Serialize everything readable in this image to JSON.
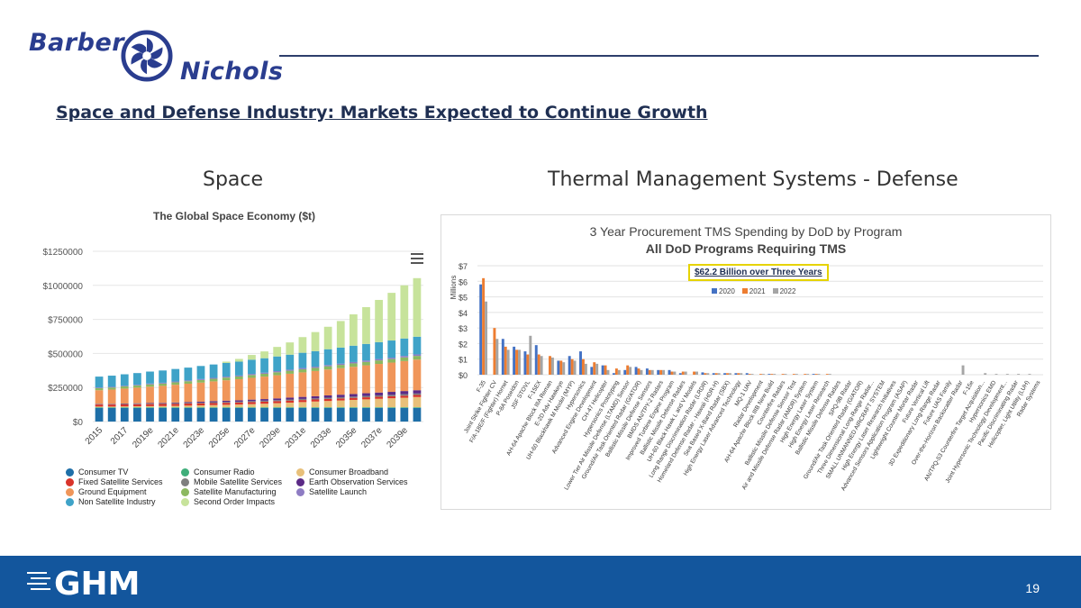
{
  "header": {
    "logo_line1": "Barber",
    "logo_line2": "Nichols",
    "title": "Space and Defense Industry: Markets Expected to Continue Growth"
  },
  "sections": {
    "space": "Space",
    "tms": "Thermal Management Systems - Defense"
  },
  "colors": {
    "brand_blue": "#2a3d8f",
    "footer_blue": "#13569d",
    "callout_border": "#e6d300",
    "tms_2020": "#4472c4",
    "tms_2021": "#ed7d31",
    "tms_2022": "#a5a5a5"
  },
  "icons": {
    "menu": "hamburger-menu-icon",
    "logo_mark": "turbine-icon"
  },
  "space_legend": [
    {
      "label": "Consumer TV",
      "color": "#1e6fa8"
    },
    {
      "label": "Consumer Radio",
      "color": "#3fae7a"
    },
    {
      "label": "Consumer Broadband",
      "color": "#e8c07a"
    },
    {
      "label": "Fixed Satellite Services",
      "color": "#d9342b"
    },
    {
      "label": "Mobile Satellite Services",
      "color": "#7f7f7f"
    },
    {
      "label": "Earth Observation Services",
      "color": "#5b2a86"
    },
    {
      "label": "Ground Equipment",
      "color": "#f0965a"
    },
    {
      "label": "Satellite Manufacturing",
      "color": "#8cb860"
    },
    {
      "label": "Satellite Launch",
      "color": "#8e7cc3"
    },
    {
      "label": "Non Satellite Industry",
      "color": "#3fa3c8"
    },
    {
      "label": "Second Order Impacts",
      "color": "#c7e39b"
    }
  ],
  "chart_data": [
    {
      "type": "bar",
      "stacked": true,
      "title": "The Global Space Economy ($t)",
      "categories": [
        "2015",
        "2016",
        "2017",
        "2018",
        "2019e",
        "2020e",
        "2021e",
        "2022e",
        "2023e",
        "2024e",
        "2025e",
        "2026e",
        "2027e",
        "2028e",
        "2029e",
        "2030e",
        "2031e",
        "2032e",
        "2033e",
        "2034e",
        "2035e",
        "2036e",
        "2037e",
        "2038e",
        "2039e",
        "2040e"
      ],
      "x_tick_labels": [
        "2015",
        "2017",
        "2019e",
        "2021e",
        "2023e",
        "2025e",
        "2027e",
        "2029e",
        "2031e",
        "2033e",
        "2035e",
        "2037e",
        "2039e"
      ],
      "y_tick_labels": [
        "$0",
        "$250000",
        "$500000",
        "$750000",
        "$1000000",
        "$1250000"
      ],
      "ylim": [
        0,
        1250000
      ],
      "series": [
        {
          "name": "Consumer TV",
          "values": [
            100000,
            100000,
            100000,
            100000,
            100000,
            100000,
            100000,
            100000,
            100000,
            100000,
            100000,
            100000,
            100000,
            100000,
            100000,
            100000,
            100000,
            100000,
            100000,
            100000,
            100000,
            100000,
            100000,
            100000,
            100000,
            100000
          ]
        },
        {
          "name": "Consumer Radio",
          "values": [
            5000,
            5000,
            5000,
            5000,
            5000,
            5000,
            5000,
            5000,
            5000,
            5000,
            5000,
            5000,
            5000,
            5000,
            5000,
            5000,
            5000,
            5000,
            5000,
            5000,
            5000,
            5000,
            5000,
            5000,
            5000,
            5000
          ]
        },
        {
          "name": "Consumer Broadband",
          "values": [
            5000,
            5000,
            6000,
            7000,
            8000,
            9000,
            10000,
            12000,
            14000,
            16000,
            18000,
            20000,
            23000,
            26000,
            30000,
            34000,
            38000,
            42000,
            46000,
            50000,
            54000,
            58000,
            62000,
            66000,
            70000,
            75000
          ]
        },
        {
          "name": "Fixed Satellite Services",
          "values": [
            15000,
            15000,
            15000,
            15000,
            15000,
            15000,
            15000,
            15000,
            15000,
            15000,
            15000,
            15000,
            15000,
            15000,
            15000,
            15000,
            15000,
            15000,
            15000,
            15000,
            15000,
            15000,
            15000,
            15000,
            15000,
            15000
          ]
        },
        {
          "name": "Mobile Satellite Services",
          "values": [
            3000,
            3000,
            3000,
            4000,
            4000,
            4000,
            5000,
            5000,
            5000,
            6000,
            6000,
            6000,
            7000,
            7000,
            7000,
            8000,
            8000,
            8000,
            9000,
            9000,
            9000,
            10000,
            10000,
            10000,
            11000,
            11000
          ]
        },
        {
          "name": "Earth Observation Services",
          "values": [
            2000,
            2000,
            3000,
            3000,
            4000,
            4000,
            5000,
            6000,
            7000,
            8000,
            9000,
            10000,
            11000,
            12000,
            13000,
            14000,
            15000,
            16000,
            17000,
            18000,
            19000,
            20000,
            21000,
            22000,
            23000,
            24000
          ]
        },
        {
          "name": "Ground Equipment",
          "values": [
            100000,
            105000,
            110000,
            115000,
            120000,
            125000,
            130000,
            135000,
            140000,
            145000,
            150000,
            155000,
            160000,
            165000,
            170000,
            175000,
            180000,
            185000,
            190000,
            195000,
            200000,
            205000,
            210000,
            215000,
            220000,
            225000
          ]
        },
        {
          "name": "Satellite Manufacturing",
          "values": [
            15000,
            15000,
            16000,
            16000,
            17000,
            17000,
            18000,
            18000,
            19000,
            19000,
            20000,
            20000,
            21000,
            21000,
            22000,
            22000,
            23000,
            23000,
            24000,
            24000,
            25000,
            25000,
            26000,
            26000,
            27000,
            27000
          ]
        },
        {
          "name": "Satellite Launch",
          "values": [
            5000,
            5000,
            5000,
            5000,
            6000,
            6000,
            6000,
            6000,
            7000,
            7000,
            7000,
            7000,
            8000,
            8000,
            8000,
            8000,
            9000,
            9000,
            9000,
            9000,
            10000,
            10000,
            10000,
            10000,
            11000,
            11000
          ]
        },
        {
          "name": "Non Satellite Industry",
          "values": [
            80000,
            82000,
            84000,
            86000,
            88000,
            90000,
            92000,
            94000,
            96000,
            98000,
            100000,
            102000,
            104000,
            106000,
            108000,
            110000,
            112000,
            114000,
            116000,
            118000,
            120000,
            122000,
            124000,
            126000,
            128000,
            130000
          ]
        },
        {
          "name": "Second Order Impacts",
          "values": [
            0,
            0,
            0,
            0,
            0,
            0,
            0,
            0,
            0,
            0,
            10000,
            20000,
            35000,
            50000,
            70000,
            90000,
            115000,
            140000,
            165000,
            195000,
            230000,
            270000,
            310000,
            350000,
            390000,
            430000
          ]
        }
      ]
    },
    {
      "type": "bar",
      "title": "3 Year Procurement TMS Spending by DoD by Program",
      "subtitle": "All DoD Programs Requiring TMS",
      "annotation": "$62.2 Billion over Three Years",
      "ylabel": "Millions",
      "ylim": [
        0,
        7
      ],
      "y_tick_labels": [
        "$0",
        "$1",
        "$2",
        "$3",
        "$4",
        "$5",
        "$6",
        "$7"
      ],
      "categories": [
        "F-35",
        "Joint Strike Fighter CV",
        "F/A-18E/F (Fighter) Hornet",
        "P-8A Poseidon",
        "JSF STOVL",
        "F-15EX",
        "AH-64 Apache Block IIIA Reman",
        "E-2D Adv Hawkeye",
        "UH-60 Blackhawk M Model (MYP)",
        "Hypersonics",
        "Advanced Engine Development",
        "CH-47 Helicopter",
        "Hypersonics Prototyping",
        "Lower Tier Air Missile Defense (LTAMD) Sensor",
        "Ground/Air Task Oriented Radar (G/ATOR)",
        "Ballistic Missile Defense Sensors",
        "BMDS AN/TPY-2 Radars",
        "Improved Turbine Engine Program",
        "Ballistic Missile Defense Radars",
        "UH-60 Black Hawk L and V Models",
        "Long Range Discrimination Radar (LRDR)",
        "Homeland Defense Radar - Hawaii (HDR-H)",
        "Sea Based X-Band Radar (SBX)",
        "High Energy Laser Advanced Technology",
        "MQ-1 UAV",
        "Radar Development",
        "AH-64 Apache Block IIIB New Build",
        "Counterfire Radars",
        "Ballistic Missile Defense Sensor Test",
        "Air and Missile Defense Radar (AMDR) System",
        "High Energy Laser System",
        "High Energy Laser Research",
        "Ballistic Missile Defense Radars",
        "SPQ-9B Radar",
        "Ground/Air Task Oriented Radar (G/ATOR)",
        "Three Dimensional Long-Range Radar...",
        "SMALL UNMANNED AIRCRAFT SYSTEM",
        "High Energy Laser Research Initiatives",
        "Advanced Sensors Application Program (ASAP)",
        "Lightweight Counter Mortar Radar",
        "Future Vertical Lift",
        "3D Expeditionary Long-Range Radar",
        "Future UAS Family",
        "Over-the-Horizon Backscatter Radar",
        "F-15e",
        "AN/TPQ-53 Counterfire Target Acquisition...",
        "Hypersonics EMD",
        "Joint Hypersonic Technology Development...",
        "Pacific Discriminating Radar",
        "Helicopter, Light Utility (LUH)",
        "Radar Systems"
      ],
      "series": [
        {
          "name": "2020",
          "values": [
            5.8,
            0,
            2.3,
            1.8,
            1.5,
            1.9,
            0,
            0.9,
            1.2,
            1.5,
            0.5,
            0.6,
            0.1,
            0.3,
            0.5,
            0.4,
            0.3,
            0.3,
            0.1,
            0,
            0.15,
            0.1,
            0.1,
            0.1,
            0.1,
            0,
            0.05,
            0,
            0,
            0,
            0.05,
            0,
            0,
            0,
            0,
            0,
            0,
            0,
            0,
            0,
            0,
            0,
            0,
            0,
            0,
            0,
            0,
            0,
            0,
            0,
            0
          ]
        },
        {
          "name": "2021",
          "values": [
            6.2,
            3.0,
            1.8,
            1.6,
            1.3,
            1.3,
            1.2,
            0.9,
            1.0,
            1.0,
            0.8,
            0.6,
            0.4,
            0.6,
            0.4,
            0.3,
            0.3,
            0.2,
            0.2,
            0.2,
            0.1,
            0.1,
            0.1,
            0.1,
            0.05,
            0.05,
            0.05,
            0.05,
            0.05,
            0.05,
            0.05,
            0.05,
            0,
            0,
            0,
            0,
            0,
            0,
            0,
            0,
            0,
            0,
            0,
            0,
            0,
            0,
            0,
            0,
            0,
            0,
            0
          ]
        },
        {
          "name": "2022",
          "values": [
            4.7,
            2.3,
            1.6,
            1.6,
            2.5,
            1.2,
            1.1,
            0.8,
            0.9,
            0.7,
            0.7,
            0.3,
            0.3,
            0.5,
            0.3,
            0.3,
            0.3,
            0.2,
            0.2,
            0.2,
            0.1,
            0.1,
            0.1,
            0.1,
            0.05,
            0.05,
            0.05,
            0.05,
            0.05,
            0.05,
            0.05,
            0.05,
            0,
            0,
            0,
            0,
            0,
            0,
            0,
            0,
            0,
            0,
            0,
            0.6,
            0,
            0.1,
            0.05,
            0.05,
            0.05,
            0.05,
            0
          ]
        }
      ],
      "x_tick_labels": [
        "F-35",
        "Joint Strike Fighter CV",
        "F/A-18E/F (Fighter) Hornet",
        "P-8A Poseidon",
        "JSF STOVL",
        "F-15EX",
        "AH-64 Apache Block IIIA Reman",
        "E-2D Adv Hawkeye",
        "UH-60 Blackhawk M Model (MYP)",
        "Hypersonics",
        "Advanced Engine Development",
        "CH-47 Helicopter",
        "Hypersonics Prototyping",
        "Lower Tier Air Missile Defense (LTAMD) Sensor",
        "Ground/Air Task Oriented Radar (G/ATOR)",
        "Ballistic Missile Defense Sensors",
        "BMDS AN/TPY-2 Radars",
        "Improved Turbine Engine Program",
        "Ballistic Missile Defense Radars",
        "UH-60 Black Hawk L and V Models",
        "Long Range Discrimination Radar (LRDR)",
        "Homeland Defense Radar - Hawaii (HDR-H)",
        "Sea Based X-Band Radar (SBX)",
        "High Energy Laser Advanced Technology",
        "MQ-1 UAV",
        "Radar Development",
        "AH-64 Apache Block IIIB New Build",
        "Counterfire Radars",
        "Ballistic Missile Defense Sensor Test",
        "Air and Missile Defense Radar (AMDR) System",
        "High Energy Laser System",
        "High Energy Laser Research",
        "Ballistic Missile Defense Radars",
        "SPQ-9B Radar",
        "Ground/Air Task Oriented Radar (G/ATOR)",
        "Three Dimensional Long-Range Radar...",
        "SMALL UNMANNED AIRCRAFT SYSTEM",
        "High Energy Laser Research Initiatives",
        "Advanced Sensors Application Program (ASAP)",
        "Lightweight Counter Mortar Radar",
        "Future Vertical Lift",
        "3D Expeditionary Long-Range Radar",
        "Future UAS Family",
        "Over-the-Horizon Backscatter Radar",
        "F-15e",
        "AN/TPQ-53 Counterfire Target Acquisition...",
        "Hypersonics EMD",
        "Joint Hypersonic Technology Development...",
        "Pacific Discriminating Radar",
        "Helicopter, Light Utility (LUH)",
        "Radar Systems"
      ]
    }
  ],
  "footer": {
    "brand": "GHM",
    "page_number": "19"
  }
}
